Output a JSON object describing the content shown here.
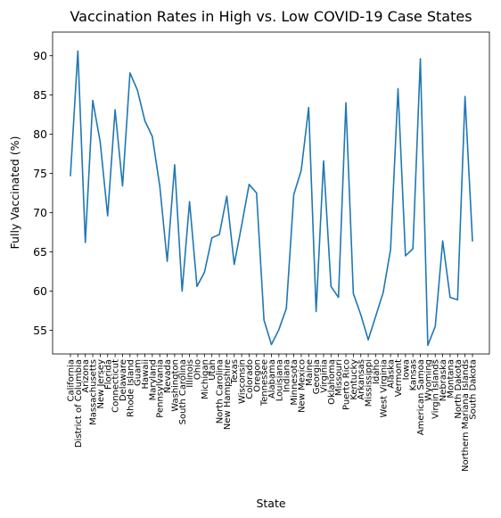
{
  "chart_data": {
    "type": "line",
    "title": "Vaccination Rates in High vs. Low COVID-19 Case States",
    "xlabel": "State",
    "ylabel": "Fully Vaccinated (%)",
    "ylim": [
      52,
      93
    ],
    "yticks": [
      55,
      60,
      65,
      70,
      75,
      80,
      85,
      90
    ],
    "grid": false,
    "line_color": "#1f77b4",
    "categories": [
      "California",
      "District of Columbia",
      "Arizona",
      "Massachusetts",
      "New Jersey",
      "Florida",
      "Connecticut",
      "Delaware",
      "Rhode Island",
      "Guam",
      "Hawaii",
      "Maryland",
      "Pennsylvania",
      "Nevada",
      "Washington",
      "South Carolina",
      "Illinois",
      "Ohio",
      "Michigan",
      "Utah",
      "North Carolina",
      "New Hampshire",
      "Texas",
      "Wisconsin",
      "Colorado",
      "Oregon",
      "Tennessee",
      "Alabama",
      "Louisiana",
      "Indiana",
      "Minnesota",
      "New Mexico",
      "Maine",
      "Georgia",
      "Virginia",
      "Oklahoma",
      "Missouri",
      "Puerto Rico",
      "Kentucky",
      "Arkansas",
      "Mississippi",
      "Idaho",
      "West Virginia",
      "Alaska",
      "Vermont",
      "Iowa",
      "Kansas",
      "American Samoa",
      "Wyoming",
      "Virgin Islands",
      "Nebraska",
      "Montana",
      "North Dakota",
      "Northern Mariana Islands",
      "South Dakota"
    ],
    "values": [
      74.7,
      90.6,
      66.2,
      84.3,
      79.0,
      69.6,
      83.1,
      73.4,
      87.8,
      85.6,
      81.7,
      79.7,
      73.4,
      63.8,
      76.1,
      60.0,
      71.4,
      60.6,
      62.4,
      66.8,
      67.2,
      72.1,
      63.4,
      68.4,
      73.6,
      72.5,
      56.3,
      53.2,
      55.1,
      57.8,
      72.3,
      75.4,
      83.4,
      57.4,
      76.6,
      60.6,
      59.2,
      84.0,
      59.7,
      57.0,
      53.8,
      56.8,
      59.8,
      65.3,
      85.8,
      64.5,
      65.4,
      89.6,
      53.1,
      55.5,
      66.4,
      59.2,
      58.9,
      84.8,
      66.4
    ]
  }
}
